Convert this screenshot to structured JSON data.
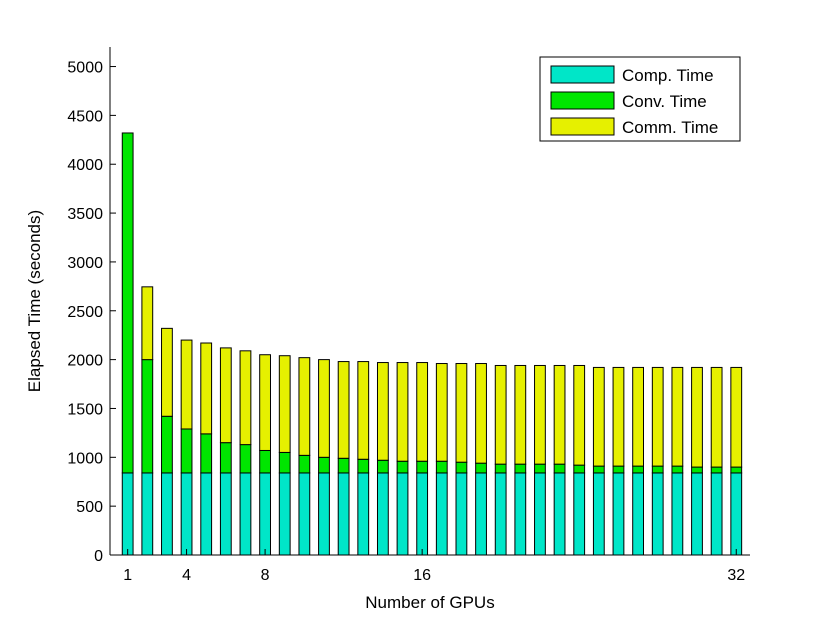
{
  "chart_data": {
    "type": "bar",
    "stacked": true,
    "xlabel": "Number of GPUs",
    "ylabel": "Elapsed Time (seconds)",
    "ylim": [
      0,
      5200
    ],
    "yticks": [
      0,
      500,
      1000,
      1500,
      2000,
      2500,
      3000,
      3500,
      4000,
      4500,
      5000
    ],
    "x": [
      1,
      2,
      3,
      4,
      5,
      6,
      7,
      8,
      9,
      10,
      11,
      12,
      13,
      14,
      15,
      16,
      17,
      18,
      19,
      20,
      21,
      22,
      23,
      24,
      25,
      26,
      27,
      28,
      29,
      30,
      31,
      32
    ],
    "xticks": [
      1,
      4,
      8,
      16,
      32
    ],
    "legend_position": "top-right",
    "grid": false,
    "series": [
      {
        "name": "Comp. Time",
        "color": "#00e6c8",
        "values": [
          840,
          840,
          840,
          840,
          840,
          840,
          840,
          840,
          840,
          840,
          840,
          840,
          840,
          840,
          840,
          840,
          840,
          840,
          840,
          840,
          840,
          840,
          840,
          840,
          840,
          840,
          840,
          840,
          840,
          840,
          840,
          840
        ]
      },
      {
        "name": "Conv. Time",
        "color": "#00e600",
        "values": [
          3480,
          1160,
          580,
          450,
          400,
          310,
          290,
          230,
          210,
          180,
          160,
          150,
          140,
          130,
          120,
          120,
          120,
          110,
          100,
          90,
          90,
          90,
          90,
          80,
          70,
          70,
          70,
          70,
          70,
          60,
          60,
          60
        ]
      },
      {
        "name": "Comm. Time",
        "color": "#e6f000",
        "values": [
          0,
          745,
          900,
          910,
          930,
          970,
          960,
          980,
          990,
          1000,
          1000,
          990,
          1000,
          1000,
          1010,
          1010,
          1000,
          1010,
          1020,
          1010,
          1010,
          1010,
          1010,
          1020,
          1010,
          1010,
          1010,
          1010,
          1010,
          1020,
          1020,
          1020
        ]
      }
    ]
  }
}
